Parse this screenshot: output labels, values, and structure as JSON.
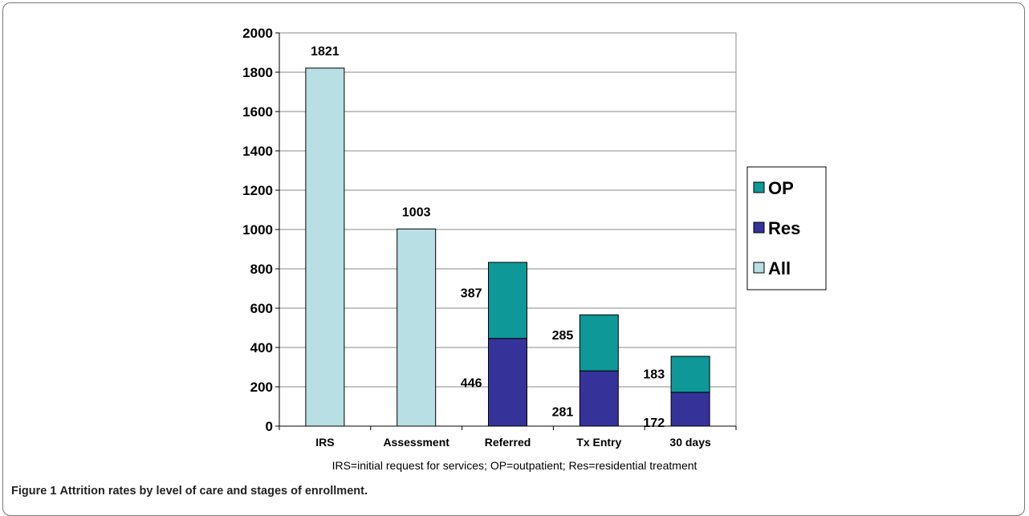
{
  "chart_data": {
    "type": "bar",
    "categories": [
      "IRS",
      "Assessment",
      "Referred",
      "Tx Entry",
      "30 days"
    ],
    "ylim": [
      0,
      2000
    ],
    "yticks": [
      0,
      200,
      400,
      600,
      800,
      1000,
      1200,
      1400,
      1600,
      1800,
      2000
    ],
    "grid": true,
    "legend_position": "right",
    "stacked": true,
    "series": [
      {
        "name": "All",
        "color": "#b8dfe3",
        "values": [
          1821,
          1003,
          null,
          null,
          null
        ]
      },
      {
        "name": "Res",
        "color": "#35339a",
        "values": [
          null,
          null,
          446,
          281,
          172
        ]
      },
      {
        "name": "OP",
        "color": "#0e9898",
        "values": [
          null,
          null,
          387,
          285,
          183
        ]
      }
    ],
    "data_labels": {
      "All": [
        "1821",
        "1003",
        "",
        "",
        ""
      ],
      "Res": [
        "",
        "",
        "446",
        "281",
        "172"
      ],
      "OP": [
        "",
        "",
        "387",
        "285",
        "183"
      ]
    },
    "legend_order": [
      "OP",
      "Res",
      "All"
    ]
  },
  "footnote": "IRS=initial request for services; OP=outpatient; Res=residential treatment",
  "caption": {
    "label": "Figure 1",
    "text": "Attrition rates by level of care and stages of enrollment."
  }
}
